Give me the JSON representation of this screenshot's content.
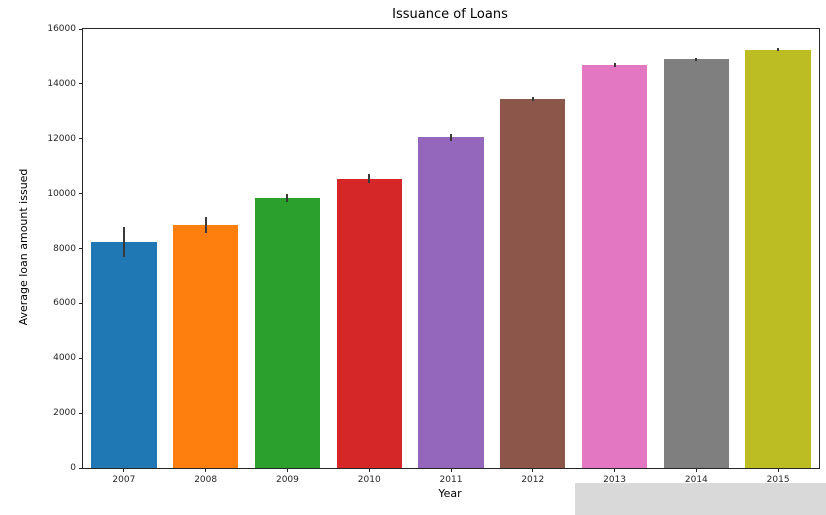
{
  "chart_data": {
    "type": "bar",
    "title": "Issuance of Loans",
    "xlabel": "Year",
    "ylabel": "Average loan amount issued",
    "categories": [
      "2007",
      "2008",
      "2009",
      "2010",
      "2011",
      "2012",
      "2013",
      "2014",
      "2015"
    ],
    "values": [
      8250,
      8850,
      9850,
      10550,
      12050,
      13450,
      14700,
      14900,
      15250
    ],
    "errors": [
      550,
      300,
      150,
      170,
      120,
      70,
      70,
      60,
      50
    ],
    "bar_colors": [
      "#1f77b4",
      "#ff7f0e",
      "#2ca02c",
      "#d62728",
      "#9467bd",
      "#8c564b",
      "#e377c2",
      "#7f7f7f",
      "#bcbd22"
    ],
    "error_bar_color": "#3a3a3a",
    "ylim": [
      0,
      16000
    ],
    "yticks": [
      0,
      2000,
      4000,
      6000,
      8000,
      10000,
      12000,
      14000,
      16000
    ],
    "grid": false,
    "legend": null,
    "bar_width_fraction": 0.8
  }
}
